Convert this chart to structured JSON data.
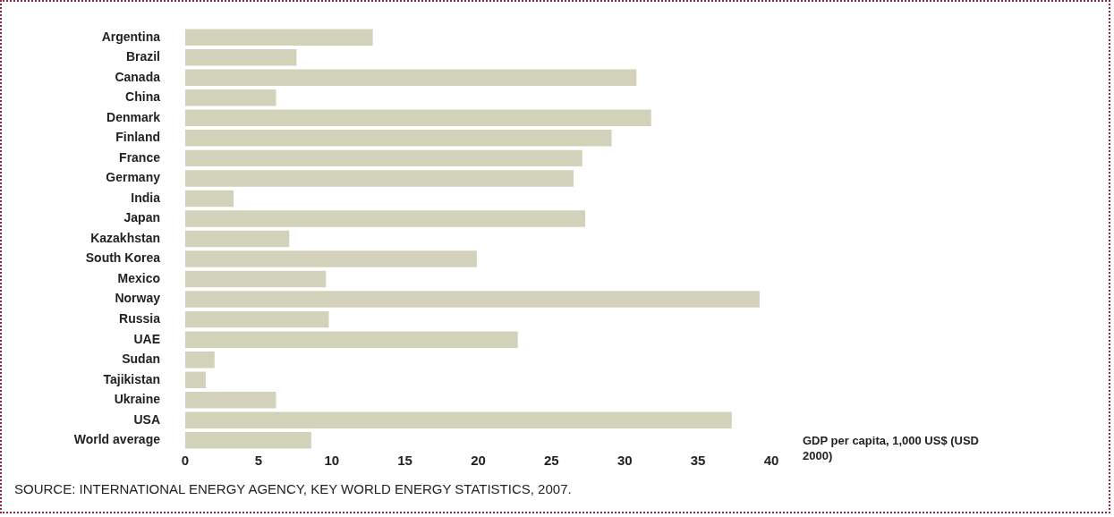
{
  "chart_data": {
    "type": "bar",
    "orientation": "horizontal",
    "xlabel": "GDP per capita, 1,000 US$ (USD 2000)",
    "categories": [
      "Argentina",
      "Brazil",
      "Canada",
      "China",
      "Denmark",
      "Finland",
      "France",
      "Germany",
      "India",
      "Japan",
      "Kazakhstan",
      "South Korea",
      "Mexico",
      "Norway",
      "Russia",
      "UAE",
      "Sudan",
      "Tajikistan",
      "Ukraine",
      "USA",
      "World average"
    ],
    "values": [
      12.8,
      7.6,
      30.8,
      6.2,
      31.8,
      29.1,
      27.1,
      26.5,
      3.3,
      27.3,
      7.1,
      19.9,
      9.6,
      39.2,
      9.8,
      22.7,
      2.0,
      1.4,
      6.2,
      37.3,
      8.6
    ],
    "color": "#d2d1b9",
    "xlim": [
      0,
      40
    ],
    "xticks": [
      0,
      5,
      10,
      15,
      20,
      25,
      30,
      35,
      40
    ],
    "grid": false,
    "annotations": [
      "SOURCE: INTERNATIONAL ENERGY AGENCY, KEY WORLD ENERGY STATISTICS, 2007."
    ]
  }
}
